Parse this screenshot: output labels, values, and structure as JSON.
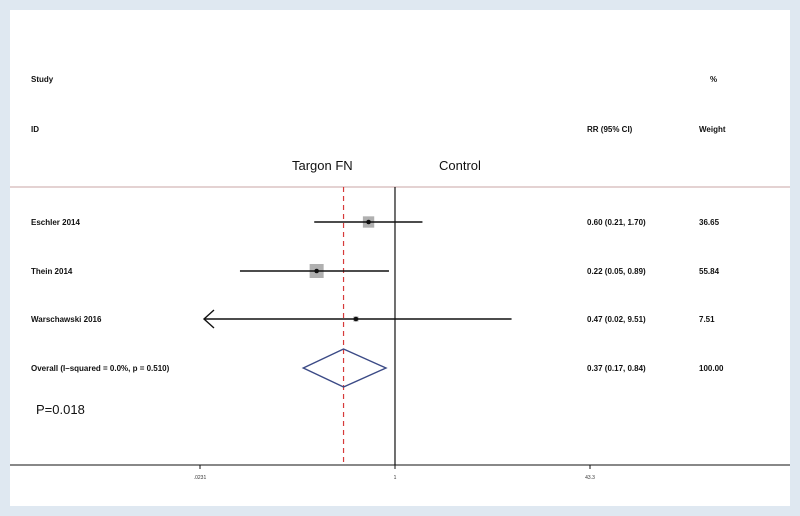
{
  "chart_data": {
    "type": "forest",
    "headers": {
      "study_line1": "Study",
      "study_line2": "ID",
      "effect": "RR (95% CI)",
      "weight_line1": "%",
      "weight_line2": "Weight"
    },
    "side_labels": {
      "left": "Targon FN",
      "right": "Control"
    },
    "x_scale": "log",
    "x_ticks": [
      {
        "value": 0.0231,
        "label": ".0231"
      },
      {
        "value": 1,
        "label": "1"
      },
      {
        "value": 43.3,
        "label": "43.3"
      }
    ],
    "xlim": [
      0.0231,
      43.3
    ],
    "reference_line": 1,
    "overall_line": 0.37,
    "studies": [
      {
        "label": "Eschler 2014",
        "rr": 0.6,
        "lo": 0.21,
        "hi": 1.7,
        "ci_text": "0.60 (0.21, 1.70)",
        "weight": 36.65,
        "weight_text": "36.65"
      },
      {
        "label": "Thein 2014",
        "rr": 0.22,
        "lo": 0.05,
        "hi": 0.89,
        "ci_text": "0.22 (0.05, 0.89)",
        "weight": 55.84,
        "weight_text": "55.84"
      },
      {
        "label": "Warschawski 2016",
        "rr": 0.47,
        "lo": 0.02,
        "hi": 9.51,
        "ci_text": "0.47 (0.02, 9.51)",
        "weight": 7.51,
        "weight_text": "7.51",
        "lo_arrow": true
      }
    ],
    "overall": {
      "label": "Overall  (I–squared = 0.0%, p = 0.510)",
      "rr": 0.37,
      "lo": 0.17,
      "hi": 0.84,
      "ci_text": "0.37 (0.17, 0.84)",
      "weight_text": "100.00"
    },
    "annotation": "P=0.018",
    "colors": {
      "reference": "#111111",
      "overall_line": "#d63a3a",
      "diamond": "#3b4a86",
      "box": "#b0b0b0",
      "separator": "#c9a6a6"
    }
  }
}
